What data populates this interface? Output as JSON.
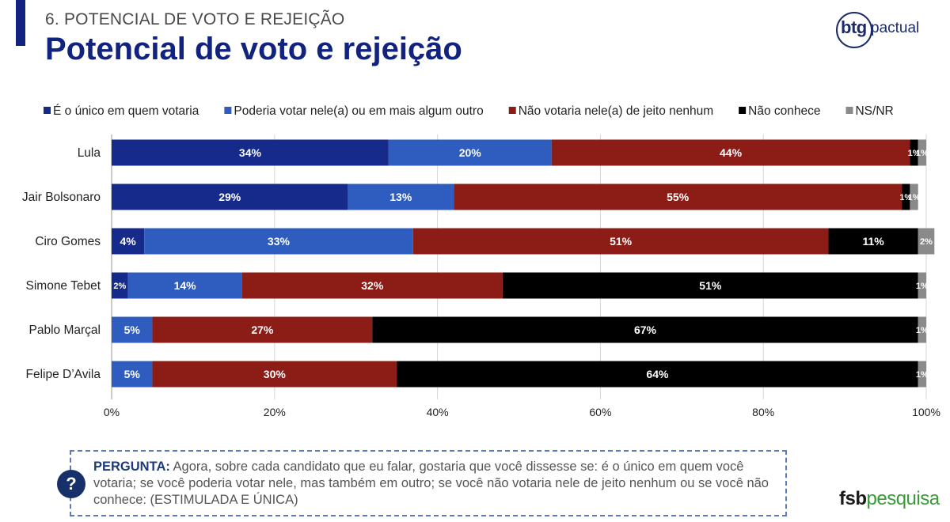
{
  "header": {
    "section_title": "6. POTENCIAL DE VOTO E REJEIÇÃO",
    "page_title": "Potencial de voto e rejeição"
  },
  "logos": {
    "btg": "btg",
    "pactual": "pactual",
    "fsb": "fsb",
    "pesquisa": "pesquisa"
  },
  "question": {
    "label": "PERGUNTA:",
    "text": " Agora, sobre cada candidato que eu falar, gostaria que você dissesse se: é o único em quem você votaria; se você poderia votar nele, mas também em outro; se você não votaria nele de jeito nenhum ou se você não conhece: (ESTIMULADA E ÚNICA)",
    "icon": "?"
  },
  "chart_data": {
    "type": "bar",
    "orientation": "horizontal",
    "stacked": true,
    "categories": [
      "Lula",
      "Jair Bolsonaro",
      "Ciro Gomes",
      "Simone Tebet",
      "Pablo Marçal",
      "Felipe D’Avila"
    ],
    "series": [
      {
        "name": "É o único em quem votaria",
        "color": "#162a8c",
        "values": [
          34,
          29,
          4,
          2,
          null,
          null
        ]
      },
      {
        "name": "Poderia votar nele(a) ou em mais algum outro",
        "color": "#2f5dbf",
        "values": [
          20,
          13,
          33,
          14,
          5,
          5
        ]
      },
      {
        "name": "Não votaria nele(a) de jeito nenhum",
        "color": "#8b1c16",
        "values": [
          44,
          55,
          51,
          32,
          27,
          30
        ]
      },
      {
        "name": "Não conhece",
        "color": "#000000",
        "values": [
          1,
          1,
          11,
          51,
          67,
          64
        ]
      },
      {
        "name": "NS/NR",
        "color": "#8a8a8a",
        "values": [
          1,
          1,
          2,
          1,
          1,
          1
        ]
      }
    ],
    "xlim": [
      0,
      100
    ],
    "xticks": [
      "0%",
      "20%",
      "40%",
      "60%",
      "80%",
      "100%"
    ],
    "value_suffix": "%",
    "legend_position": "top"
  }
}
